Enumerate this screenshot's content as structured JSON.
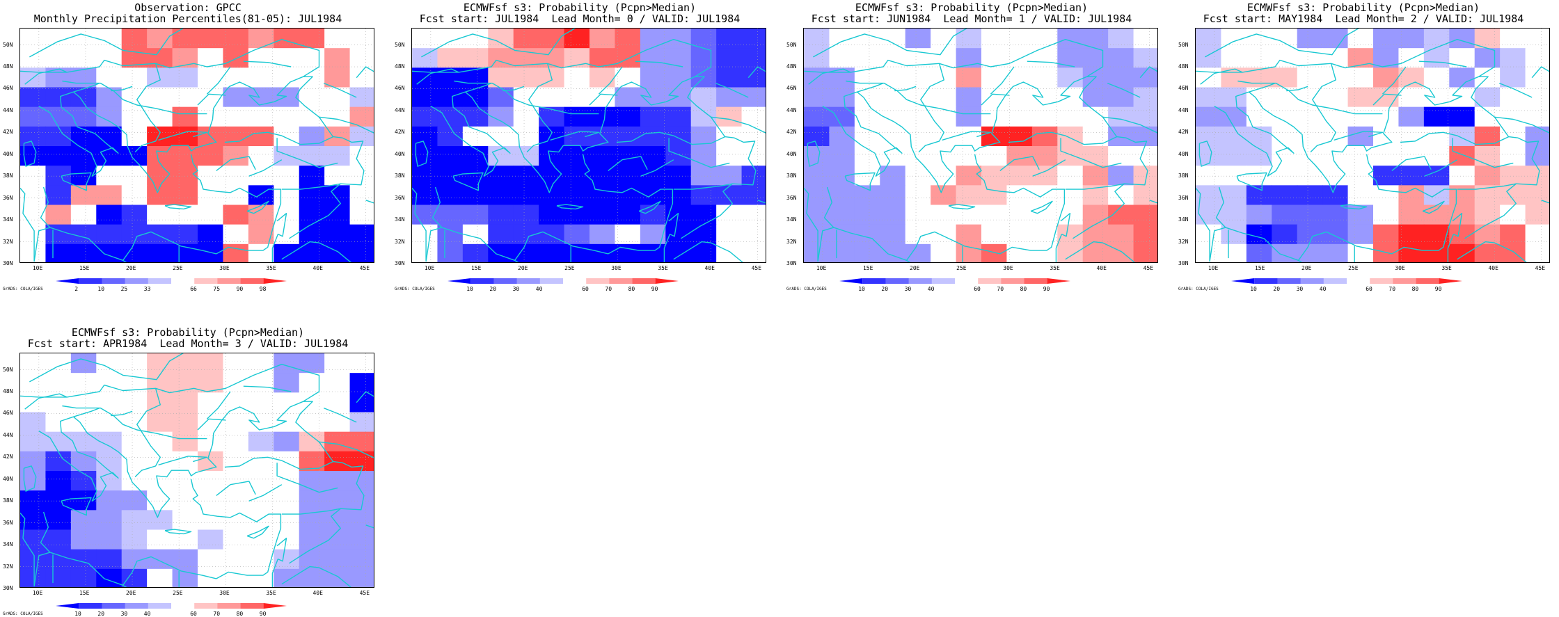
{
  "colors": {
    "coast": "#19c8d2",
    "grid": "#aaaaaa",
    "scale": [
      "#0000ff",
      "#3333ff",
      "#6666ff",
      "#9999ff",
      "#c4c4ff",
      "#ffffff",
      "#ffc4c4",
      "#ff9999",
      "#ff6666",
      "#ff2222"
    ]
  },
  "y_ticks": [
    "50N",
    "48N",
    "46N",
    "44N",
    "42N",
    "40N",
    "38N",
    "36N",
    "34N",
    "32N",
    "30N"
  ],
  "x_ticks": [
    "10E",
    "15E",
    "20E",
    "25E",
    "30E",
    "35E",
    "40E",
    "45E"
  ],
  "credit": "GrADS: COLA/IGES",
  "panels": [
    {
      "title1": "Observation: GPCC",
      "title2": "Monthly Precipitation Percentiles(81-05): JUL1984",
      "cbar_labels": [
        "2",
        "10",
        "25",
        "33",
        "66",
        "75",
        "90",
        "98"
      ],
      "grid": [
        "55558788878855",
        "55558875855575",
        "43355445555575",
        "11135555333554",
        "22235585555557",
        "11005998885374",
        "00000888754445",
        "51055885555055",
        "51775885505005",
        "57501555875005",
        "51111110575000",
        "50000000850000"
      ]
    },
    {
      "title1": "ECMWFsf s3: Probability (Pcpn>Median)",
      "title2": "Fcst start: JUL1984  Lead Month= 0 / VALID: JUL1984",
      "cbar_labels": [
        "10",
        "20",
        "30",
        "40",
        "60",
        "70",
        "80",
        "90"
      ],
      "grid": [
        "55568897833211",
        "46677768833211",
        "00066656533211",
        "00025555333433",
        "11135100011465",
        "01555011111355",
        "00044000001355",
        "00000000000331",
        "00000000000111",
        "22211000010055",
        "52511123530055",
        "52100000000055"
      ]
    },
    {
      "title1": "ECMWFsf s3: Probability (Pcpn>Median)",
      "title2": "Fcst start: JUN1984  Lead Month= 1 / VALID: JUL1984",
      "cbar_labels": [
        "10",
        "20",
        "30",
        "40",
        "60",
        "70",
        "80",
        "90"
      ],
      "grid": [
        "45553545553345",
        "45555535553334",
        "33555575554333",
        "33555535555334",
        "22555535555544",
        "13555559986533",
        "33555555776655",
        "33535576665736",
        "33335766555656",
        "33335555555788",
        "33335575556778",
        "33333578556778"
      ]
    },
    {
      "title1": "ECMWFsf s3: Probability (Pcpn>Median)",
      "title2": "Fcst start: MAY1984  Lead Month= 2 / VALID: JUL1984",
      "cbar_labels": [
        "10",
        "20",
        "30",
        "40",
        "60",
        "70",
        "80",
        "90"
      ],
      "grid": [
        "45553353343655",
        "45555573545345",
        "56665557653545",
        "44555566555455",
        "33555555300555",
        "44455535554853",
        "44455555558653",
        "55555551115766",
        "44111155747666",
        "44322235777656",
        "54012238998785",
        "55233358999885"
      ]
    },
    {
      "title1": "ECMWFsf s3: Probability (Pcpn>Median)",
      "title2": "Fcst start: APR1984  Lead Month= 3 / VALID: JUL1984",
      "cbar_labels": [
        "10",
        "20",
        "30",
        "40",
        "60",
        "70",
        "80",
        "90"
      ],
      "grid": [
        "55355666553355",
        "55555666553550",
        "55555665555550",
        "45555665555554",
        "44445565543688",
        "31345556555899",
        "30145555555333",
        "00033555555333",
        "00334455555333",
        "11334554555333",
        "11113335554333",
        "11101535553333"
      ]
    }
  ]
}
